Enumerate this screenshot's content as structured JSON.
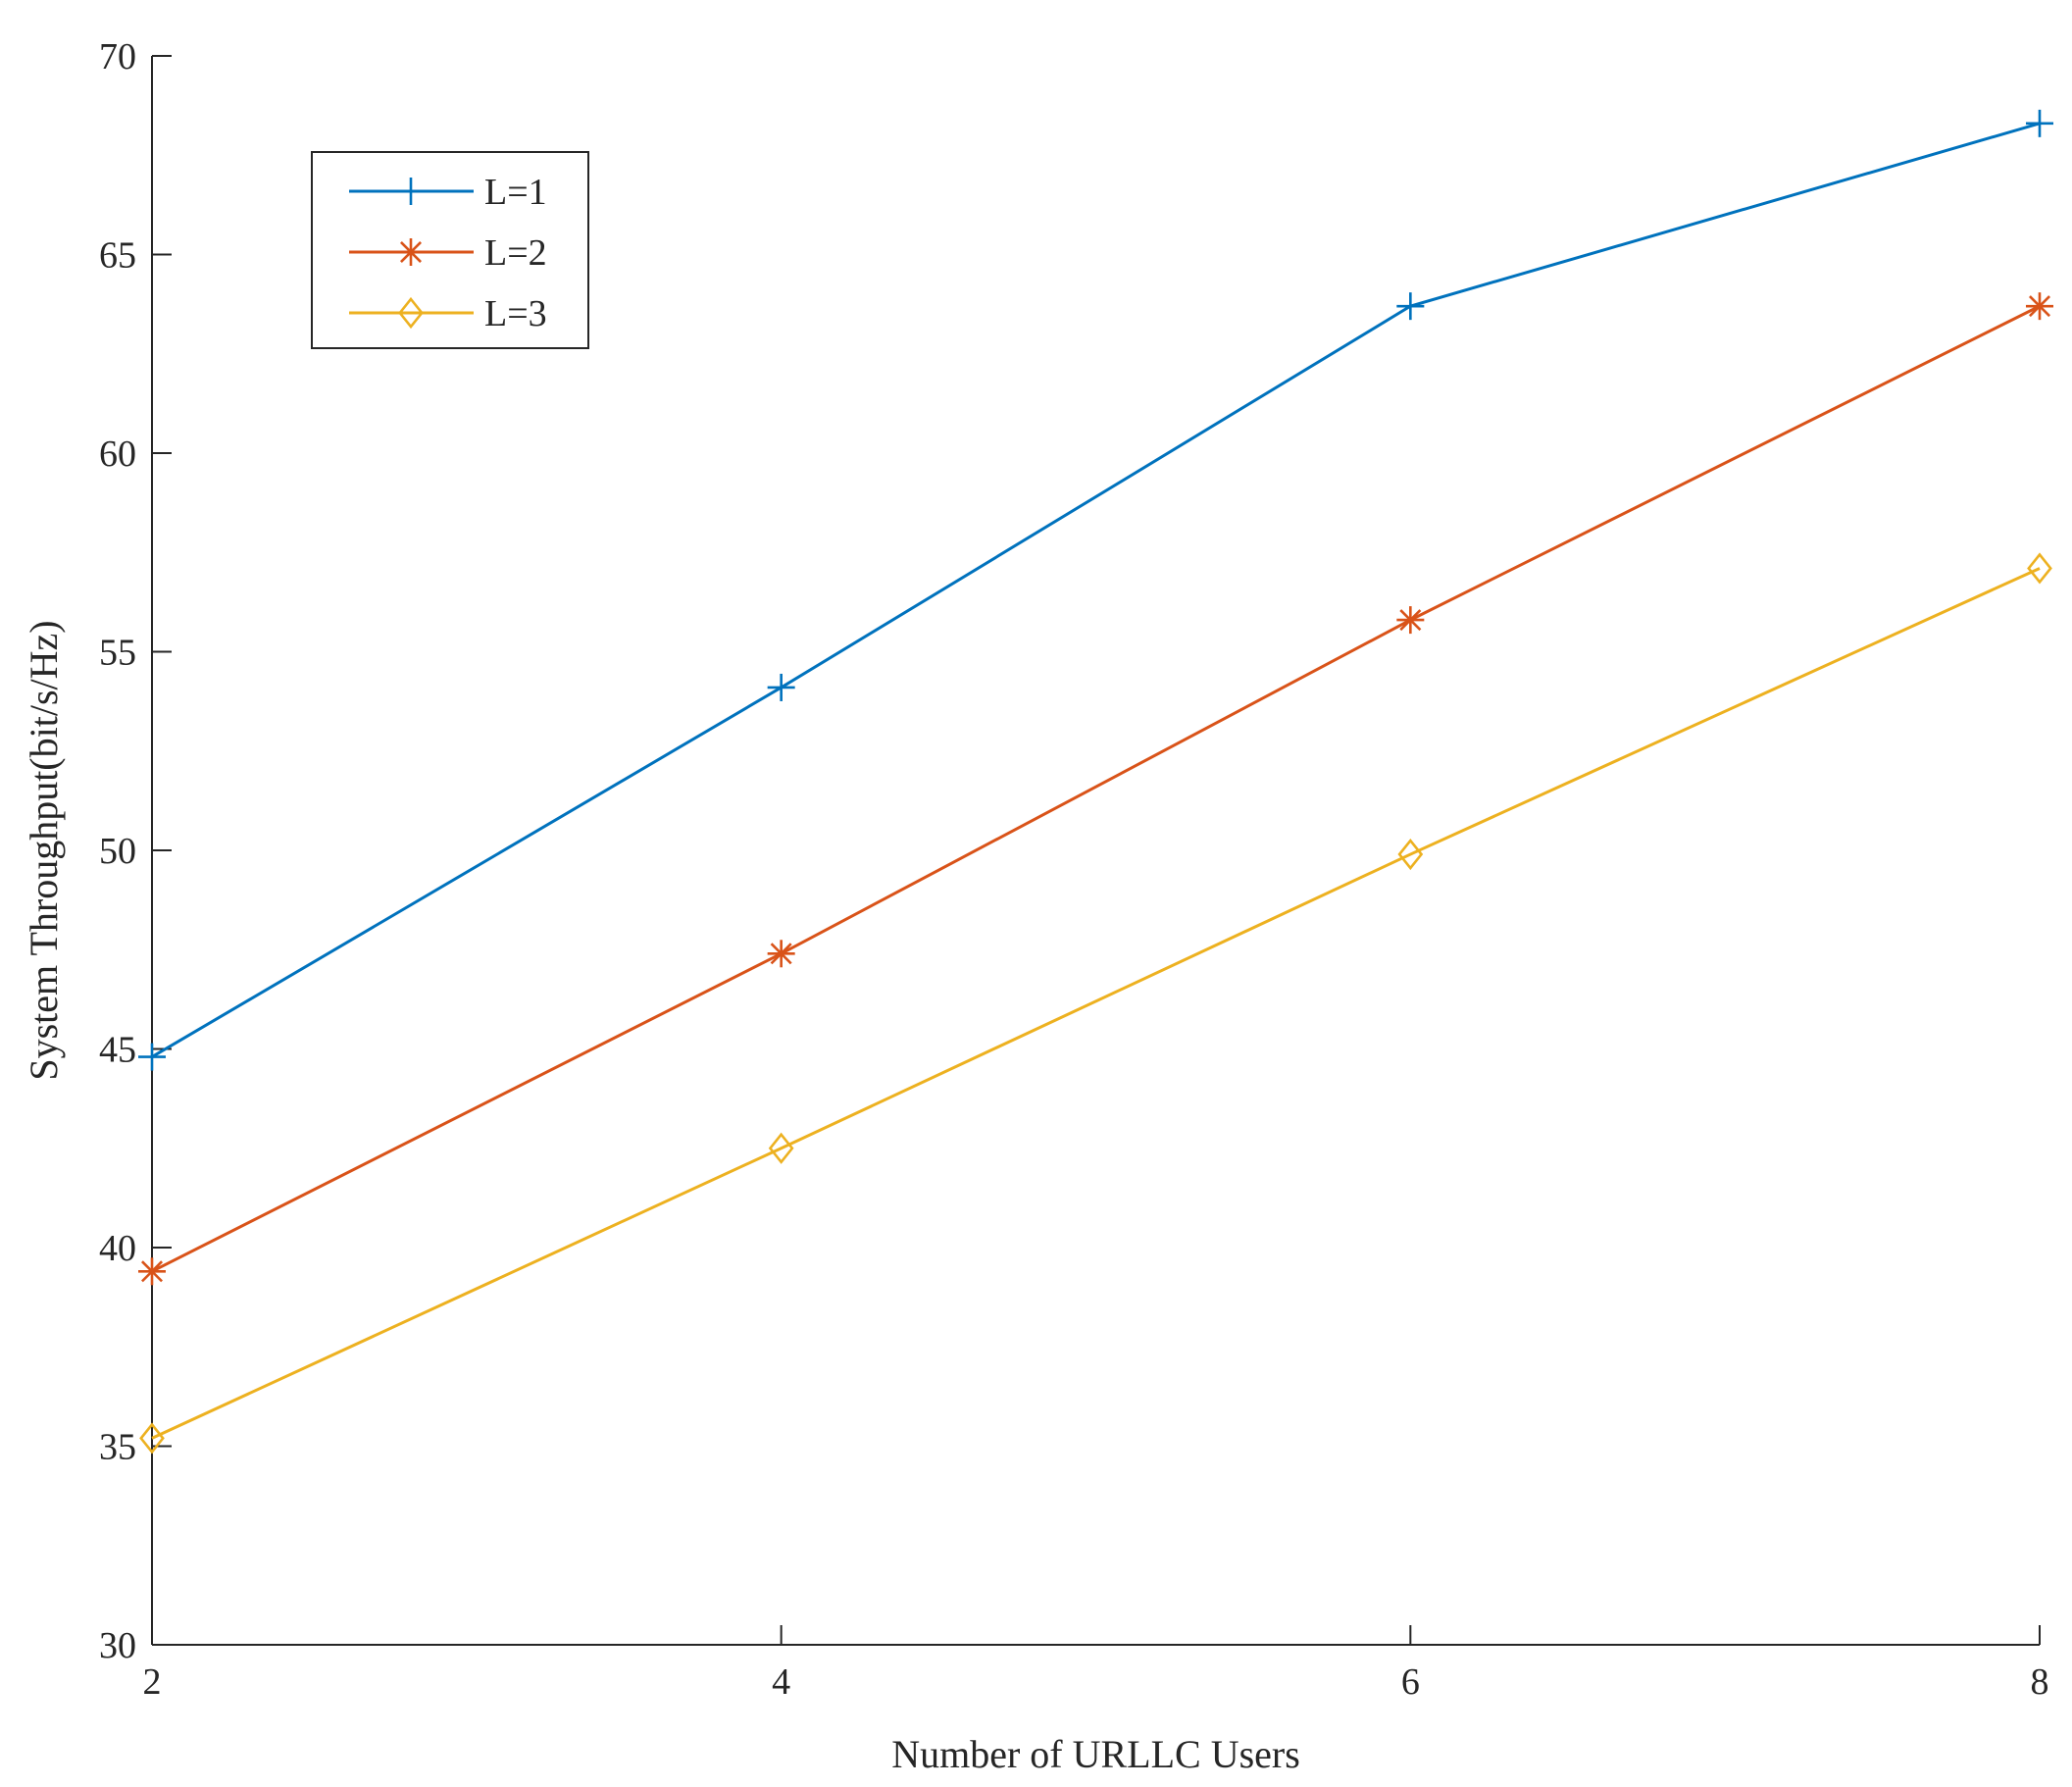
{
  "chart_data": {
    "type": "line",
    "xlabel": "Number of URLLC Users",
    "ylabel": "System Throughput(bit/s/Hz)",
    "xlim": [
      2,
      8
    ],
    "ylim": [
      30,
      70
    ],
    "xticks": [
      2,
      4,
      6,
      8
    ],
    "yticks": [
      30,
      35,
      40,
      45,
      50,
      55,
      60,
      65,
      70
    ],
    "x": [
      2,
      4,
      6,
      8
    ],
    "grid": false,
    "legend_position": "top-left",
    "series": [
      {
        "name": "L=1",
        "color": "#0072BD",
        "marker": "plus",
        "values": [
          44.8,
          54.1,
          63.7,
          68.3
        ]
      },
      {
        "name": "L=2",
        "color": "#D95319",
        "marker": "asterisk",
        "values": [
          39.4,
          47.4,
          55.8,
          63.7
        ]
      },
      {
        "name": "L=3",
        "color": "#EDB120",
        "marker": "diamond",
        "values": [
          35.2,
          42.5,
          49.9,
          57.1
        ]
      }
    ]
  }
}
